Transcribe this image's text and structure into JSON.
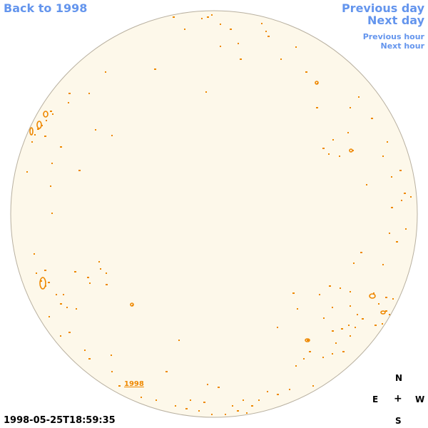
{
  "nav": {
    "back": "Back to 1998",
    "previous_day": "Previous day",
    "next_day": "Next day",
    "previous_hour": "Previous hour",
    "next_hour": "Next hour"
  },
  "timestamp": "1998-05-25T18:59:35",
  "year_label": "1998",
  "compass": {
    "north": "N",
    "south": "S",
    "east": "E",
    "west": "W",
    "center": "+"
  },
  "colors": {
    "link": "#6495ed",
    "disk_fill": "#fdf8ea",
    "disk_border": "#b8b0a0",
    "contour": "#ee8800"
  }
}
